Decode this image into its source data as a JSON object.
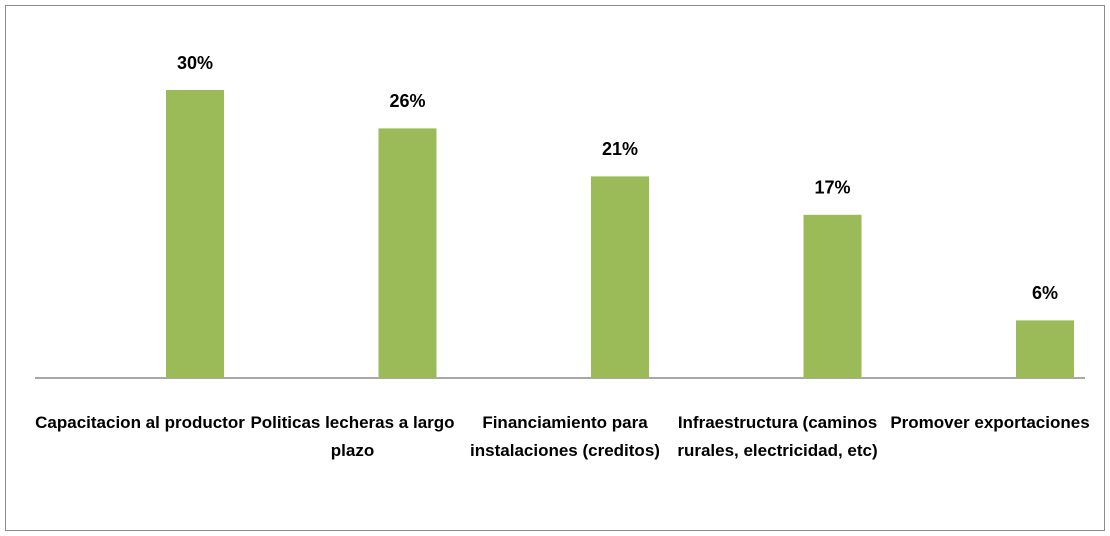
{
  "chart_data": {
    "type": "bar",
    "categories": [
      "Capacitacion al productor",
      "Politicas lecheras a largo plazo",
      "Financiamiento para instalaciones (creditos)",
      "Infraestructura (caminos rurales, electricidad, etc)",
      "Promover exportaciones"
    ],
    "values": [
      30,
      26,
      21,
      17,
      6
    ],
    "value_labels": [
      "30%",
      "26%",
      "21%",
      "17%",
      "6%"
    ],
    "color": "#9bbb59"
  }
}
